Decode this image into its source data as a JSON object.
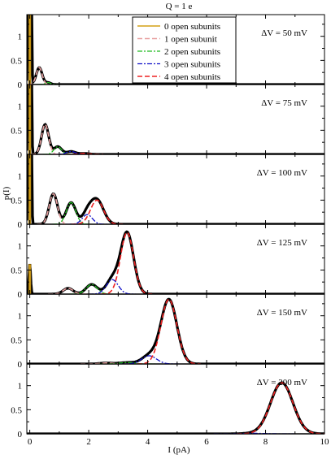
{
  "chart_data": {
    "type": "line",
    "title": "Q = 1 e",
    "xlabel": "I (pA)",
    "ylabel": "p(I)",
    "xlim": [
      -0.1,
      10
    ],
    "ylim": [
      0,
      1.45
    ],
    "x_ticks": [
      "0",
      "2",
      "4",
      "6",
      "8",
      "10"
    ],
    "y_ticks": [
      "0",
      "0.5",
      "1"
    ],
    "colors": {
      "total": "#000000",
      "0_open": "#d4a017",
      "1_open": "#e8a0a0",
      "2_open": "#22bb22",
      "3_open": "#1010c8",
      "4_open": "#ee2222"
    },
    "legend": {
      "placement": "top-center",
      "entries": [
        {
          "key": "0_open",
          "label": "0 open subunits"
        },
        {
          "key": "1_open",
          "label": "1 open subunit"
        },
        {
          "key": "2_open",
          "label": "2 open subunits"
        },
        {
          "key": "3_open",
          "label": "3 open subunits"
        },
        {
          "key": "4_open",
          "label": "4 open subunits"
        }
      ]
    },
    "panels": [
      {
        "label": "ΔV = 50 mV",
        "peaks": [
          {
            "center": 0.0,
            "sigma": 0.03,
            "height": 20.0,
            "subunits": 0
          },
          {
            "center": 0.32,
            "sigma": 0.1,
            "height": 0.35,
            "subunits": 1
          },
          {
            "center": 0.62,
            "sigma": 0.09,
            "height": 0.04,
            "subunits": 2
          }
        ]
      },
      {
        "label": "ΔV = 75 mV",
        "peaks": [
          {
            "center": 0.0,
            "sigma": 0.03,
            "height": 20.0,
            "subunits": 0
          },
          {
            "center": 0.52,
            "sigma": 0.12,
            "height": 0.62,
            "subunits": 1
          },
          {
            "center": 0.95,
            "sigma": 0.13,
            "height": 0.16,
            "subunits": 2
          },
          {
            "center": 1.4,
            "sigma": 0.15,
            "height": 0.06,
            "subunits": 3
          },
          {
            "center": 1.85,
            "sigma": 0.16,
            "height": 0.02,
            "subunits": 4
          }
        ]
      },
      {
        "label": "ΔV = 100 mV",
        "peaks": [
          {
            "center": 0.0,
            "sigma": 0.03,
            "height": 20.0,
            "subunits": 0
          },
          {
            "center": 0.8,
            "sigma": 0.14,
            "height": 0.63,
            "subunits": 1
          },
          {
            "center": 1.4,
            "sigma": 0.16,
            "height": 0.45,
            "subunits": 2
          },
          {
            "center": 1.95,
            "sigma": 0.17,
            "height": 0.2,
            "subunits": 3
          },
          {
            "center": 2.28,
            "sigma": 0.22,
            "height": 0.5,
            "subunits": 4
          }
        ]
      },
      {
        "label": "ΔV = 125 mV",
        "peaks": [
          {
            "center": 0.0,
            "sigma": 0.03,
            "height": 0.62,
            "subunits": 0
          },
          {
            "center": 1.3,
            "sigma": 0.17,
            "height": 0.12,
            "subunits": 1
          },
          {
            "center": 2.1,
            "sigma": 0.19,
            "height": 0.2,
            "subunits": 2
          },
          {
            "center": 2.8,
            "sigma": 0.2,
            "height": 0.3,
            "subunits": 3
          },
          {
            "center": 3.3,
            "sigma": 0.22,
            "height": 1.28,
            "subunits": 4
          }
        ]
      },
      {
        "label": "ΔV = 150 mV",
        "peaks": [
          {
            "center": 0.0,
            "sigma": 0.03,
            "height": 0.0,
            "subunits": 0
          },
          {
            "center": 2.6,
            "sigma": 0.22,
            "height": 0.02,
            "subunits": 1
          },
          {
            "center": 3.3,
            "sigma": 0.24,
            "height": 0.03,
            "subunits": 2
          },
          {
            "center": 4.05,
            "sigma": 0.25,
            "height": 0.17,
            "subunits": 3
          },
          {
            "center": 4.72,
            "sigma": 0.27,
            "height": 1.34,
            "subunits": 4
          }
        ]
      },
      {
        "label": "ΔV = 200 mV",
        "peaks": [
          {
            "center": 0.0,
            "sigma": 0.03,
            "height": 0.0,
            "subunits": 0
          },
          {
            "center": 5.8,
            "sigma": 0.3,
            "height": 0.0,
            "subunits": 1
          },
          {
            "center": 6.7,
            "sigma": 0.32,
            "height": 0.0,
            "subunits": 2
          },
          {
            "center": 7.6,
            "sigma": 0.34,
            "height": 0.01,
            "subunits": 3
          },
          {
            "center": 8.55,
            "sigma": 0.38,
            "height": 1.06,
            "subunits": 4
          }
        ]
      }
    ]
  }
}
